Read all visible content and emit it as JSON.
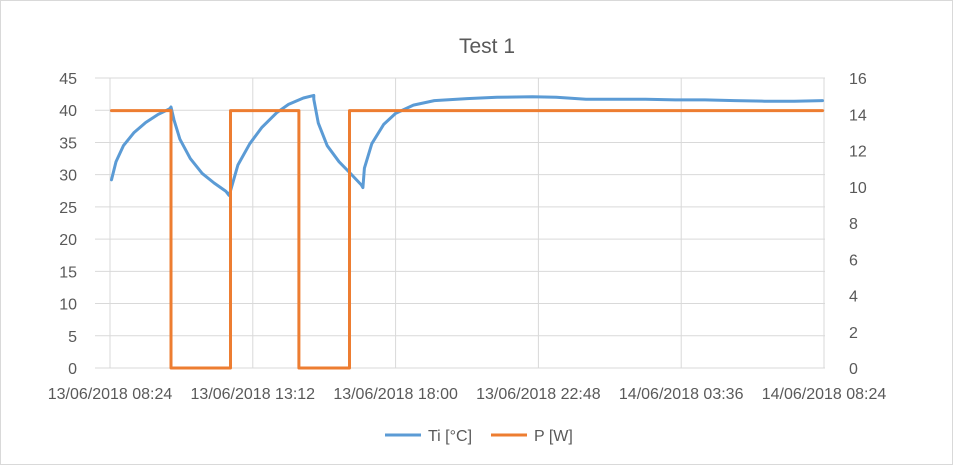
{
  "chart_data": {
    "type": "line",
    "title": "Test 1",
    "grid": true,
    "legend_position": "bottom",
    "x_axis": {
      "ticks": [
        "13/06/2018 08:24",
        "13/06/2018 13:12",
        "13/06/2018 18:00",
        "13/06/2018 22:48",
        "14/06/2018 03:36",
        "14/06/2018 08:24"
      ],
      "range_hours": [
        0,
        24
      ]
    },
    "y_left": {
      "ticks": [
        "0",
        "5",
        "10",
        "15",
        "20",
        "25",
        "30",
        "35",
        "40",
        "45"
      ],
      "range": [
        0,
        45
      ]
    },
    "y_right": {
      "ticks": [
        "0",
        "2",
        "4",
        "6",
        "8",
        "10",
        "12",
        "14",
        "16"
      ],
      "range": [
        0,
        16
      ]
    },
    "legend": [
      "Ti [°C]",
      "P [W]"
    ],
    "series": [
      {
        "name": "Ti [°C]",
        "axis": "left",
        "color": "#5b9bd5",
        "points": [
          [
            0.05,
            29.2
          ],
          [
            0.2,
            32.0
          ],
          [
            0.45,
            34.5
          ],
          [
            0.8,
            36.5
          ],
          [
            1.2,
            38.1
          ],
          [
            1.6,
            39.3
          ],
          [
            2.0,
            40.2
          ],
          [
            2.05,
            40.5
          ],
          [
            2.15,
            38.5
          ],
          [
            2.35,
            35.5
          ],
          [
            2.7,
            32.5
          ],
          [
            3.1,
            30.2
          ],
          [
            3.5,
            28.7
          ],
          [
            3.9,
            27.4
          ],
          [
            4.0,
            26.8
          ],
          [
            4.05,
            27.5
          ],
          [
            4.3,
            31.5
          ],
          [
            4.7,
            34.8
          ],
          [
            5.1,
            37.3
          ],
          [
            5.6,
            39.6
          ],
          [
            6.0,
            40.9
          ],
          [
            6.5,
            41.9
          ],
          [
            6.85,
            42.3
          ],
          [
            6.85,
            41.7
          ],
          [
            7.0,
            38.0
          ],
          [
            7.3,
            34.5
          ],
          [
            7.7,
            32.0
          ],
          [
            8.1,
            30.1
          ],
          [
            8.45,
            28.4
          ],
          [
            8.5,
            28.0
          ],
          [
            8.55,
            31.0
          ],
          [
            8.8,
            34.8
          ],
          [
            9.2,
            37.8
          ],
          [
            9.6,
            39.5
          ],
          [
            10.2,
            40.8
          ],
          [
            10.9,
            41.5
          ],
          [
            12.0,
            41.8
          ],
          [
            13.0,
            42.0
          ],
          [
            14.2,
            42.1
          ],
          [
            15.0,
            42.0
          ],
          [
            16.0,
            41.7
          ],
          [
            17.0,
            41.7
          ],
          [
            18.0,
            41.7
          ],
          [
            19.0,
            41.6
          ],
          [
            20.0,
            41.6
          ],
          [
            21.0,
            41.5
          ],
          [
            22.0,
            41.4
          ],
          [
            23.0,
            41.4
          ],
          [
            23.95,
            41.5
          ]
        ]
      },
      {
        "name": "P [W]",
        "axis": "right",
        "color": "#ed7d31",
        "points": [
          [
            0.05,
            14.2
          ],
          [
            2.05,
            14.2
          ],
          [
            2.05,
            0.0
          ],
          [
            4.05,
            0.0
          ],
          [
            4.05,
            14.2
          ],
          [
            6.35,
            14.2
          ],
          [
            6.35,
            0.0
          ],
          [
            8.05,
            0.0
          ],
          [
            8.05,
            14.2
          ],
          [
            23.95,
            14.2
          ]
        ]
      }
    ]
  }
}
